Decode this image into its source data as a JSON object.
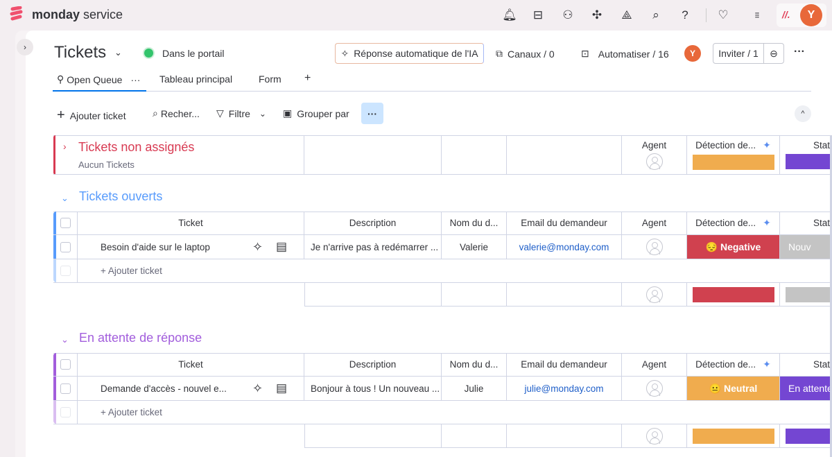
{
  "brand": {
    "name_bold": "monday",
    "name_light": " service"
  },
  "topbar": {
    "icons": [
      "bell-icon",
      "inbox-icon",
      "invite-user-icon",
      "puzzle-icon",
      "integrations-icon",
      "search-icon",
      "help-icon",
      "heart-icon",
      "apps-grid-icon"
    ],
    "avatar": "Y"
  },
  "board": {
    "title": "Tickets",
    "portal_status": "Dans le portail",
    "ai_button": "Réponse automatique de l'IA",
    "channels": "Canaux / 0",
    "automate": "Automatiser / 16",
    "avatar": "Y",
    "invite": "Inviter / 1"
  },
  "tabs": [
    {
      "label": "Open Queue",
      "active": true
    },
    {
      "label": "Tableau principal"
    },
    {
      "label": "Form"
    },
    {
      "label": "+"
    }
  ],
  "toolbar": {
    "add": "Ajouter ticket",
    "search": "Recher...",
    "filter": "Filtre",
    "group": "Grouper par"
  },
  "columns": [
    "Ticket",
    "Description",
    "Nom du d...",
    "Email du demandeur",
    "Agent",
    "Détection de...",
    "Stat"
  ],
  "groups": [
    {
      "title": "Tickets non assignés",
      "subtitle": "Aucun Tickets",
      "color": "#d83a52",
      "collapsed": true,
      "summary_colors": [
        "#f0ac4e",
        "#7446d2"
      ]
    },
    {
      "title": "Tickets ouverts",
      "color": "#579bfc",
      "rows": [
        {
          "ticket": "Besoin d'aide sur le laptop",
          "description": "Je n'arrive pas à redémarrer ...",
          "name": "Valerie",
          "email": "valerie@monday.com",
          "sentiment": "😔 Negative",
          "sentiment_color": "#d0414f",
          "status": "Nouv",
          "status_color": "#c4c4c4"
        }
      ],
      "add_label": "+ Ajouter ticket",
      "summary_colors": [
        "#d0414f",
        "#c4c4c4"
      ]
    },
    {
      "title": "En attente de réponse",
      "color": "#a25ddc",
      "rows": [
        {
          "ticket": "Demande d'accès - nouvel e...",
          "description": "Bonjour à tous ! Un nouveau ...",
          "name": "Julie",
          "email": "julie@monday.com",
          "sentiment": "😐 Neutral",
          "sentiment_color": "#f0ac4e",
          "status": "En attente",
          "status_color": "#7446d2"
        }
      ],
      "add_label": "+ Ajouter ticket",
      "summary_colors": [
        "#f0ac4e",
        "#7446d2"
      ]
    }
  ]
}
